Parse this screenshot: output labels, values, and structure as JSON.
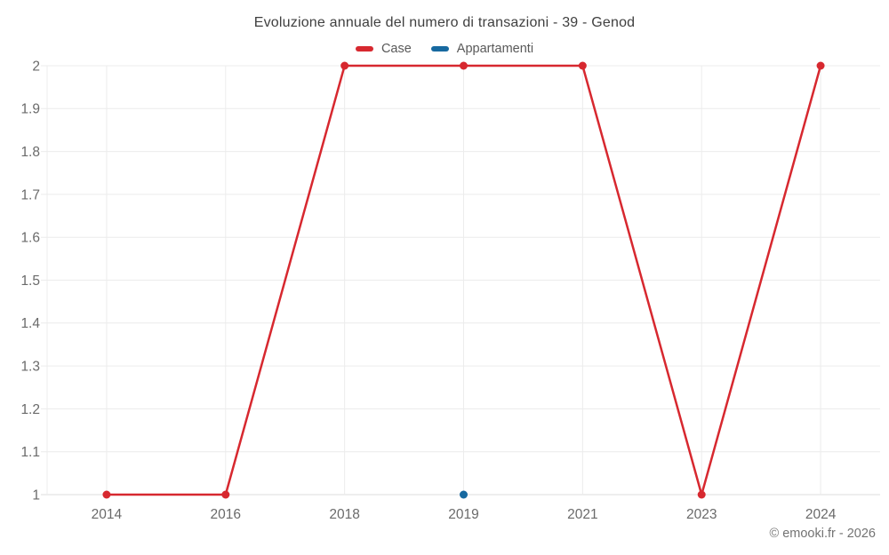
{
  "chart_data": {
    "type": "line",
    "title": "Evoluzione annuale del numero di transazioni - 39 - Genod",
    "categories": [
      "2014",
      "2016",
      "2018",
      "2019",
      "2021",
      "2023",
      "2024"
    ],
    "series": [
      {
        "name": "Case",
        "color": "#d7282f",
        "values": [
          1,
          1,
          2,
          2,
          2,
          1,
          2
        ]
      },
      {
        "name": "Appartamenti",
        "color": "#1769a0",
        "values": [
          null,
          null,
          null,
          1,
          null,
          null,
          null
        ]
      }
    ],
    "y_ticks": [
      1,
      1.1,
      1.2,
      1.3,
      1.4,
      1.5,
      1.6,
      1.7,
      1.8,
      1.9,
      2
    ],
    "ylim": [
      1,
      2
    ],
    "xlabel": "",
    "ylabel": "",
    "grid": true,
    "legend_position": "top"
  },
  "attribution": "© emooki.fr - 2026",
  "colors": {
    "background": "#ffffff",
    "grid": "#ececec",
    "baseline": "#dcdcdc",
    "tick_label": "#6a6a6a",
    "title": "#3f3f3f",
    "legend_label": "#595959",
    "attribution": "#737373"
  }
}
